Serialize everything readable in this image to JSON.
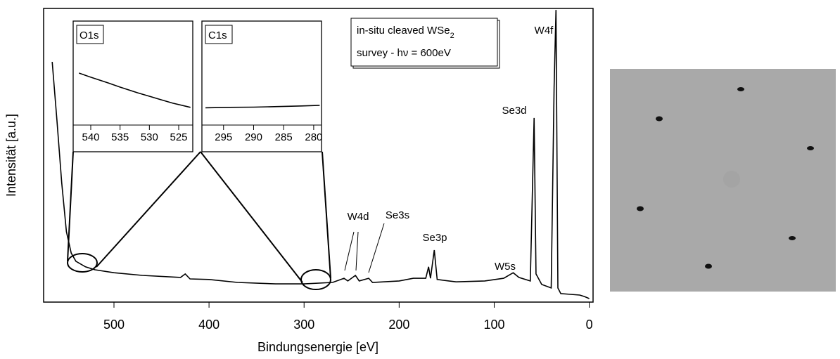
{
  "chart_data": [
    {
      "type": "line",
      "x_label": "Bindungsenergie [eV]",
      "y_label": "Intensität [a.u.]",
      "xlim": [
        574,
        -4
      ],
      "ylim": [
        0,
        100
      ],
      "xticks": [
        500,
        400,
        300,
        200,
        100,
        0
      ],
      "series": [
        {
          "color": "#000000",
          "x": [
            565,
            560,
            555,
            550,
            545,
            540,
            530,
            520,
            500,
            470,
            430,
            425,
            420,
            400,
            370,
            330,
            300,
            270,
            258,
            254,
            246,
            242,
            232,
            228,
            200,
            185,
            172,
            169,
            167,
            163,
            160,
            140,
            110,
            90,
            80,
            74,
            62,
            58,
            56,
            50,
            40,
            37,
            35,
            33,
            30,
            10,
            5,
            0
          ],
          "values": [
            81.8,
            62,
            40.7,
            24,
            16.7,
            13.9,
            12,
            11,
            10,
            9.1,
            8.4,
            9.6,
            7.9,
            7.7,
            6.7,
            6.2,
            6.2,
            6.7,
            8.1,
            7.2,
            9.1,
            7.2,
            8.1,
            6.7,
            7.2,
            8.1,
            8.1,
            12,
            8.1,
            17.7,
            7.7,
            6.9,
            7.2,
            8.1,
            10,
            8.4,
            7.2,
            62.7,
            9.6,
            6,
            4.8,
            73,
            99.5,
            4.8,
            2.9,
            2.4,
            1.9,
            1.2
          ]
        }
      ],
      "annotations": [
        "W4f",
        "Se3d",
        "Se3p",
        "Se3s",
        "W4d",
        "W5s"
      ],
      "text_box": {
        "line1": "in-situ cleaved WSe",
        "line1_sub": "2",
        "line2": "survey - hν = 600eV"
      }
    },
    {
      "type": "line",
      "title": "O1s",
      "xlim": [
        543,
        522.6
      ],
      "ylim": [
        0,
        100
      ],
      "xticks": [
        540,
        535,
        530,
        525
      ],
      "series": [
        {
          "color": "#000000",
          "x": [
            542,
            540,
            537,
            535,
            532,
            530,
            528,
            526,
            523
          ],
          "values": [
            50,
            46,
            40.5,
            36.5,
            31,
            27.7,
            24.3,
            21,
            17
          ]
        }
      ]
    },
    {
      "type": "line",
      "title": "C1s",
      "xlim": [
        298.6,
        278.7
      ],
      "ylim": [
        0,
        100
      ],
      "xticks": [
        295,
        290,
        285,
        280
      ],
      "series": [
        {
          "color": "#000000",
          "x": [
            298,
            294,
            290,
            286,
            282,
            279
          ],
          "values": [
            16.6,
            17,
            17.2,
            17.8,
            18.4,
            19
          ]
        }
      ]
    }
  ]
}
